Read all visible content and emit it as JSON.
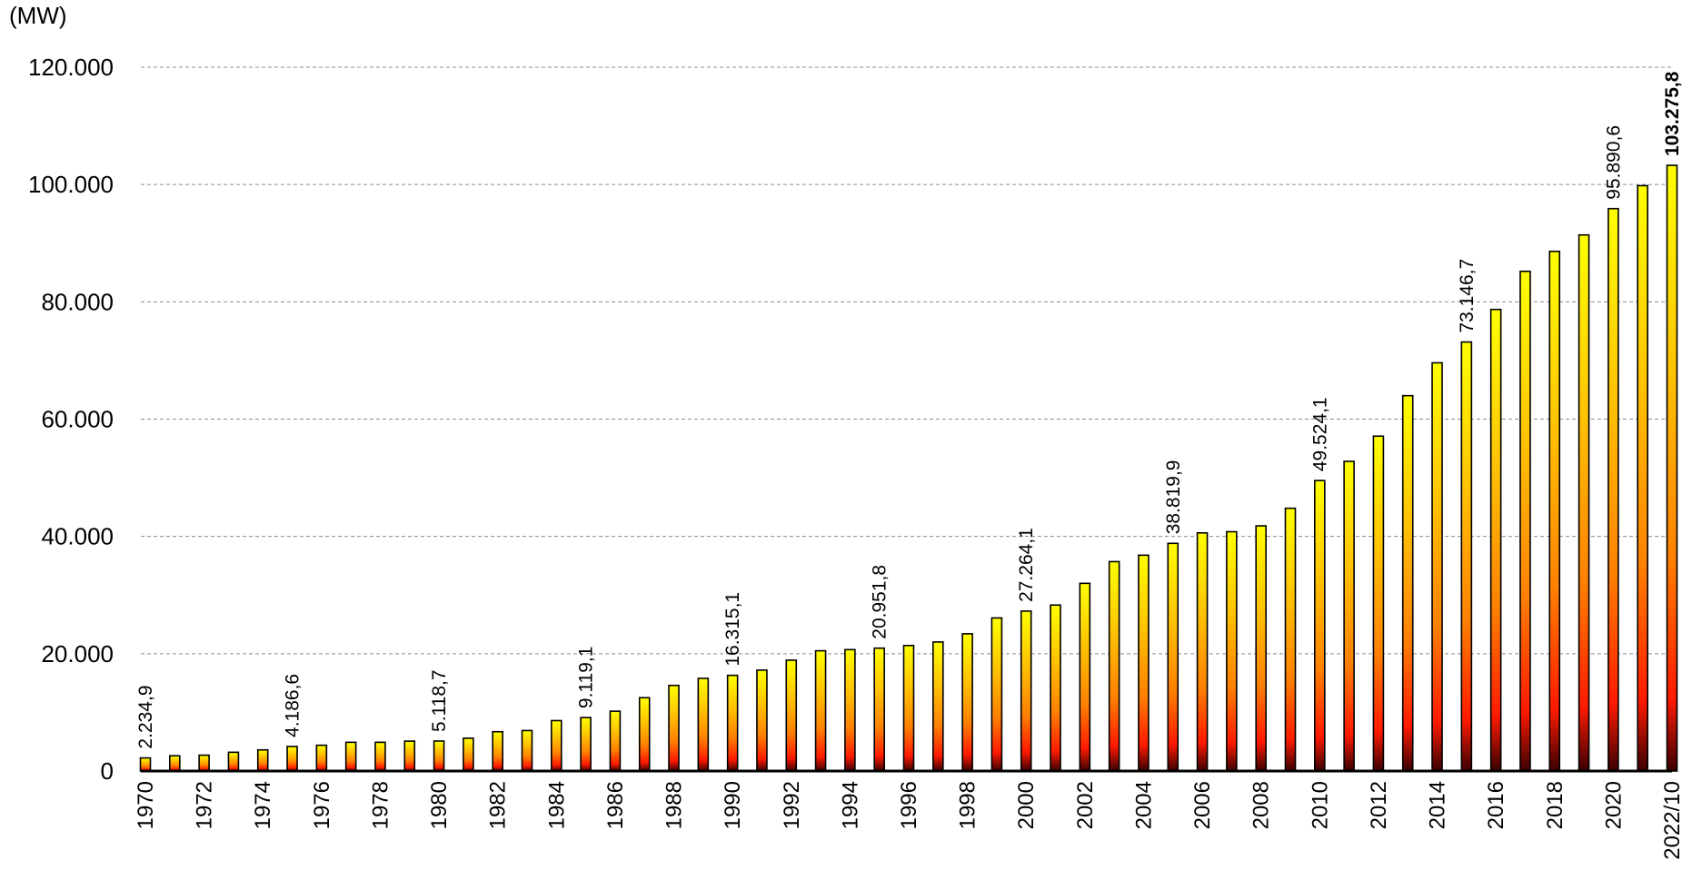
{
  "chart_data": {
    "type": "bar",
    "unit_label": "(MW)",
    "ylim": [
      0,
      120000
    ],
    "y_ticks": [
      0,
      20000,
      40000,
      60000,
      80000,
      100000,
      120000
    ],
    "y_tick_labels": [
      "0",
      "20.000",
      "40.000",
      "60.000",
      "80.000",
      "100.000",
      "120.000"
    ],
    "grid": true,
    "categories": [
      "1970",
      "1971",
      "1972",
      "1973",
      "1974",
      "1975",
      "1976",
      "1977",
      "1978",
      "1979",
      "1980",
      "1981",
      "1982",
      "1983",
      "1984",
      "1985",
      "1986",
      "1987",
      "1988",
      "1989",
      "1990",
      "1991",
      "1992",
      "1993",
      "1994",
      "1995",
      "1996",
      "1997",
      "1998",
      "1999",
      "2000",
      "2001",
      "2002",
      "2003",
      "2004",
      "2005",
      "2006",
      "2007",
      "2008",
      "2009",
      "2010",
      "2011",
      "2012",
      "2013",
      "2014",
      "2015",
      "2016",
      "2017",
      "2018",
      "2019",
      "2020",
      "2021",
      "2022/10"
    ],
    "shown_x_labels": [
      "1970",
      "1972",
      "1974",
      "1976",
      "1978",
      "1980",
      "1982",
      "1984",
      "1986",
      "1988",
      "1990",
      "1992",
      "1994",
      "1996",
      "1998",
      "2000",
      "2002",
      "2004",
      "2006",
      "2008",
      "2010",
      "2012",
      "2014",
      "2016",
      "2018",
      "2020",
      "2022/10"
    ],
    "values": [
      2234.9,
      2600,
      2700,
      3200,
      3600,
      4186.6,
      4400,
      4900,
      4900,
      5100,
      5118.7,
      5600,
      6700,
      6900,
      8600,
      9119.1,
      10200,
      12500,
      14600,
      15800,
      16315.1,
      17200,
      18900,
      20500,
      20700,
      20951.8,
      21400,
      22000,
      23400,
      26100,
      27264.1,
      28300,
      32000,
      35700,
      36800,
      38819.9,
      40600,
      40800,
      41800,
      44800,
      49524.1,
      52800,
      57100,
      64000,
      69600,
      73146.7,
      78700,
      85200,
      88600,
      91400,
      95890.6,
      99800,
      103275.8
    ],
    "data_labels": [
      {
        "category": "1970",
        "text": "2.234,9"
      },
      {
        "category": "1975",
        "text": "4.186,6"
      },
      {
        "category": "1980",
        "text": "5.118,7"
      },
      {
        "category": "1985",
        "text": "9.119,1"
      },
      {
        "category": "1990",
        "text": "16.315,1"
      },
      {
        "category": "1995",
        "text": "20.951,8"
      },
      {
        "category": "2000",
        "text": "27.264,1"
      },
      {
        "category": "2005",
        "text": "38.819,9"
      },
      {
        "category": "2010",
        "text": "49.524,1"
      },
      {
        "category": "2015",
        "text": "73.146,7"
      },
      {
        "category": "2020",
        "text": "95.890,6"
      },
      {
        "category": "2022/10",
        "text": "103.275,8",
        "bold": true
      }
    ],
    "bar_gradient": [
      "#ffff00",
      "#ffc000",
      "#ff8000",
      "#ff1a00",
      "#3a0000"
    ]
  }
}
